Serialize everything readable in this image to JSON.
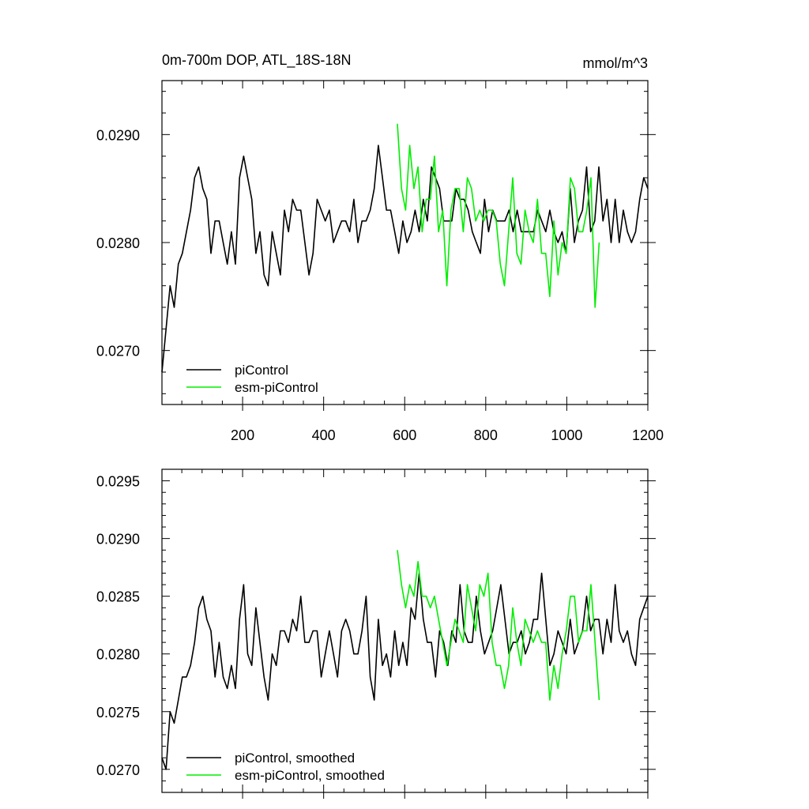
{
  "figure": {
    "title_left": "0m-700m DOP, ATL_18S-18N",
    "title_right": "mmol/m^3"
  },
  "chart_data": [
    {
      "type": "line",
      "xlim": [
        1,
        1200
      ],
      "ylim": [
        0.0265,
        0.0295
      ],
      "x_ticks": [
        200,
        400,
        600,
        800,
        1000,
        1200
      ],
      "x_tick_labels": [
        "200",
        "400",
        "600",
        "800",
        "1000",
        "1200"
      ],
      "y_ticks": [
        0.027,
        0.028,
        0.029
      ],
      "y_tick_labels": [
        "0.0270",
        "0.0280",
        "0.0290"
      ],
      "grid": false,
      "legend_position": "bottom-left",
      "series": [
        {
          "name": "piControl",
          "color": "#000000",
          "x_start": 1,
          "x_end": 1200,
          "values": [
            0.0268,
            0.0272,
            0.0276,
            0.0274,
            0.0278,
            0.0279,
            0.0281,
            0.0283,
            0.0286,
            0.0287,
            0.0285,
            0.0284,
            0.0279,
            0.0282,
            0.0282,
            0.028,
            0.0278,
            0.0281,
            0.0278,
            0.0286,
            0.0288,
            0.0286,
            0.0284,
            0.0279,
            0.0281,
            0.0277,
            0.0276,
            0.0281,
            0.0279,
            0.0277,
            0.0283,
            0.0281,
            0.0284,
            0.0283,
            0.0283,
            0.028,
            0.0277,
            0.0279,
            0.0284,
            0.0283,
            0.0282,
            0.0283,
            0.028,
            0.0281,
            0.0282,
            0.0282,
            0.0281,
            0.0284,
            0.028,
            0.0282,
            0.0282,
            0.0283,
            0.0285,
            0.0289,
            0.0286,
            0.0283,
            0.0283,
            0.0281,
            0.0279,
            0.0282,
            0.028,
            0.0281,
            0.0283,
            0.0281,
            0.0284,
            0.0282,
            0.0287,
            0.0286,
            0.0285,
            0.0282,
            0.0282,
            0.0282,
            0.0285,
            0.0284,
            0.0284,
            0.0283,
            0.0281,
            0.028,
            0.0279,
            0.0284,
            0.0281,
            0.0283,
            0.0282,
            0.0282,
            0.0282,
            0.0283,
            0.0281,
            0.0283,
            0.0281,
            0.0281,
            0.0281,
            0.0281,
            0.0283,
            0.0282,
            0.0281,
            0.0283,
            0.0281,
            0.028,
            0.0281,
            0.0279,
            0.0285,
            0.028,
            0.0282,
            0.0283,
            0.0287,
            0.0281,
            0.0282,
            0.0287,
            0.0282,
            0.0284,
            0.028,
            0.0284,
            0.028,
            0.0283,
            0.0281,
            0.028,
            0.0281,
            0.0284,
            0.0286,
            0.0285
          ]
        },
        {
          "name": "esm-piControl",
          "color": "#00ee00",
          "x_start": 582,
          "x_end": 1080,
          "values": [
            0.0291,
            0.0285,
            0.0283,
            0.0289,
            0.0285,
            0.0287,
            0.0281,
            0.0284,
            0.0284,
            0.0288,
            0.0281,
            0.0283,
            0.0276,
            0.0283,
            0.0285,
            0.0285,
            0.0281,
            0.0286,
            0.0285,
            0.0282,
            0.0283,
            0.0282,
            0.0283,
            0.0283,
            0.0282,
            0.0278,
            0.0276,
            0.0281,
            0.0286,
            0.0279,
            0.0278,
            0.0283,
            0.0281,
            0.028,
            0.0284,
            0.0279,
            0.0279,
            0.0275,
            0.0282,
            0.0277,
            0.028,
            0.0279,
            0.0286,
            0.0285,
            0.0281,
            0.0281,
            0.0283,
            0.0286,
            0.0274,
            0.028
          ]
        }
      ]
    },
    {
      "type": "line",
      "xlim": [
        1,
        1200
      ],
      "ylim": [
        0.0268,
        0.0296
      ],
      "x_ticks": [
        200,
        400,
        600,
        800,
        1000,
        1200
      ],
      "y_ticks": [
        0.027,
        0.0275,
        0.028,
        0.0285,
        0.029,
        0.0295
      ],
      "y_tick_labels": [
        "0.0270",
        "0.0275",
        "0.0280",
        "0.0285",
        "0.0290",
        "0.0295"
      ],
      "grid": false,
      "legend_position": "bottom-left",
      "series": [
        {
          "name": "piControl, smoothed",
          "color": "#000000",
          "x_start": 1,
          "x_end": 1200,
          "values": [
            0.0271,
            0.027,
            0.0275,
            0.0274,
            0.0276,
            0.0278,
            0.0278,
            0.0279,
            0.0281,
            0.0284,
            0.0285,
            0.0283,
            0.0282,
            0.0278,
            0.0281,
            0.0278,
            0.0277,
            0.0279,
            0.0277,
            0.0283,
            0.0286,
            0.028,
            0.0279,
            0.0284,
            0.0281,
            0.0278,
            0.0276,
            0.028,
            0.0279,
            0.0282,
            0.0282,
            0.0281,
            0.0283,
            0.0282,
            0.0285,
            0.0281,
            0.0281,
            0.0282,
            0.0282,
            0.0278,
            0.028,
            0.0282,
            0.028,
            0.0278,
            0.0282,
            0.0283,
            0.0282,
            0.028,
            0.028,
            0.0282,
            0.0285,
            0.0278,
            0.0276,
            0.0283,
            0.0279,
            0.028,
            0.0278,
            0.0282,
            0.0279,
            0.0281,
            0.0279,
            0.0284,
            0.0283,
            0.0287,
            0.0283,
            0.0281,
            0.0281,
            0.0278,
            0.0282,
            0.0281,
            0.0279,
            0.0282,
            0.0281,
            0.0286,
            0.0282,
            0.0281,
            0.0281,
            0.0285,
            0.0282,
            0.028,
            0.0281,
            0.0282,
            0.0284,
            0.0286,
            0.0283,
            0.028,
            0.0281,
            0.0281,
            0.0282,
            0.028,
            0.0281,
            0.0283,
            0.0283,
            0.0287,
            0.0283,
            0.0279,
            0.028,
            0.0282,
            0.0281,
            0.028,
            0.0283,
            0.028,
            0.0281,
            0.0282,
            0.0285,
            0.0282,
            0.0283,
            0.0283,
            0.028,
            0.0283,
            0.0281,
            0.0286,
            0.0282,
            0.0281,
            0.0282,
            0.028,
            0.0279,
            0.0283,
            0.0284,
            0.0285
          ]
        },
        {
          "name": "esm-piControl, smoothed",
          "color": "#00ee00",
          "x_start": 582,
          "x_end": 1080,
          "values": [
            0.0289,
            0.0286,
            0.0284,
            0.0286,
            0.0285,
            0.0288,
            0.0285,
            0.0285,
            0.0284,
            0.0285,
            0.0283,
            0.0281,
            0.0279,
            0.0281,
            0.0283,
            0.0282,
            0.0281,
            0.0286,
            0.0284,
            0.0282,
            0.0286,
            0.0285,
            0.0287,
            0.0281,
            0.0279,
            0.0279,
            0.0277,
            0.0279,
            0.0284,
            0.0281,
            0.0279,
            0.0283,
            0.0282,
            0.0281,
            0.0282,
            0.0281,
            0.0281,
            0.0276,
            0.0279,
            0.0277,
            0.028,
            0.0282,
            0.0285,
            0.0285,
            0.0281,
            0.0282,
            0.0282,
            0.0286,
            0.0281,
            0.0276
          ]
        }
      ]
    }
  ]
}
